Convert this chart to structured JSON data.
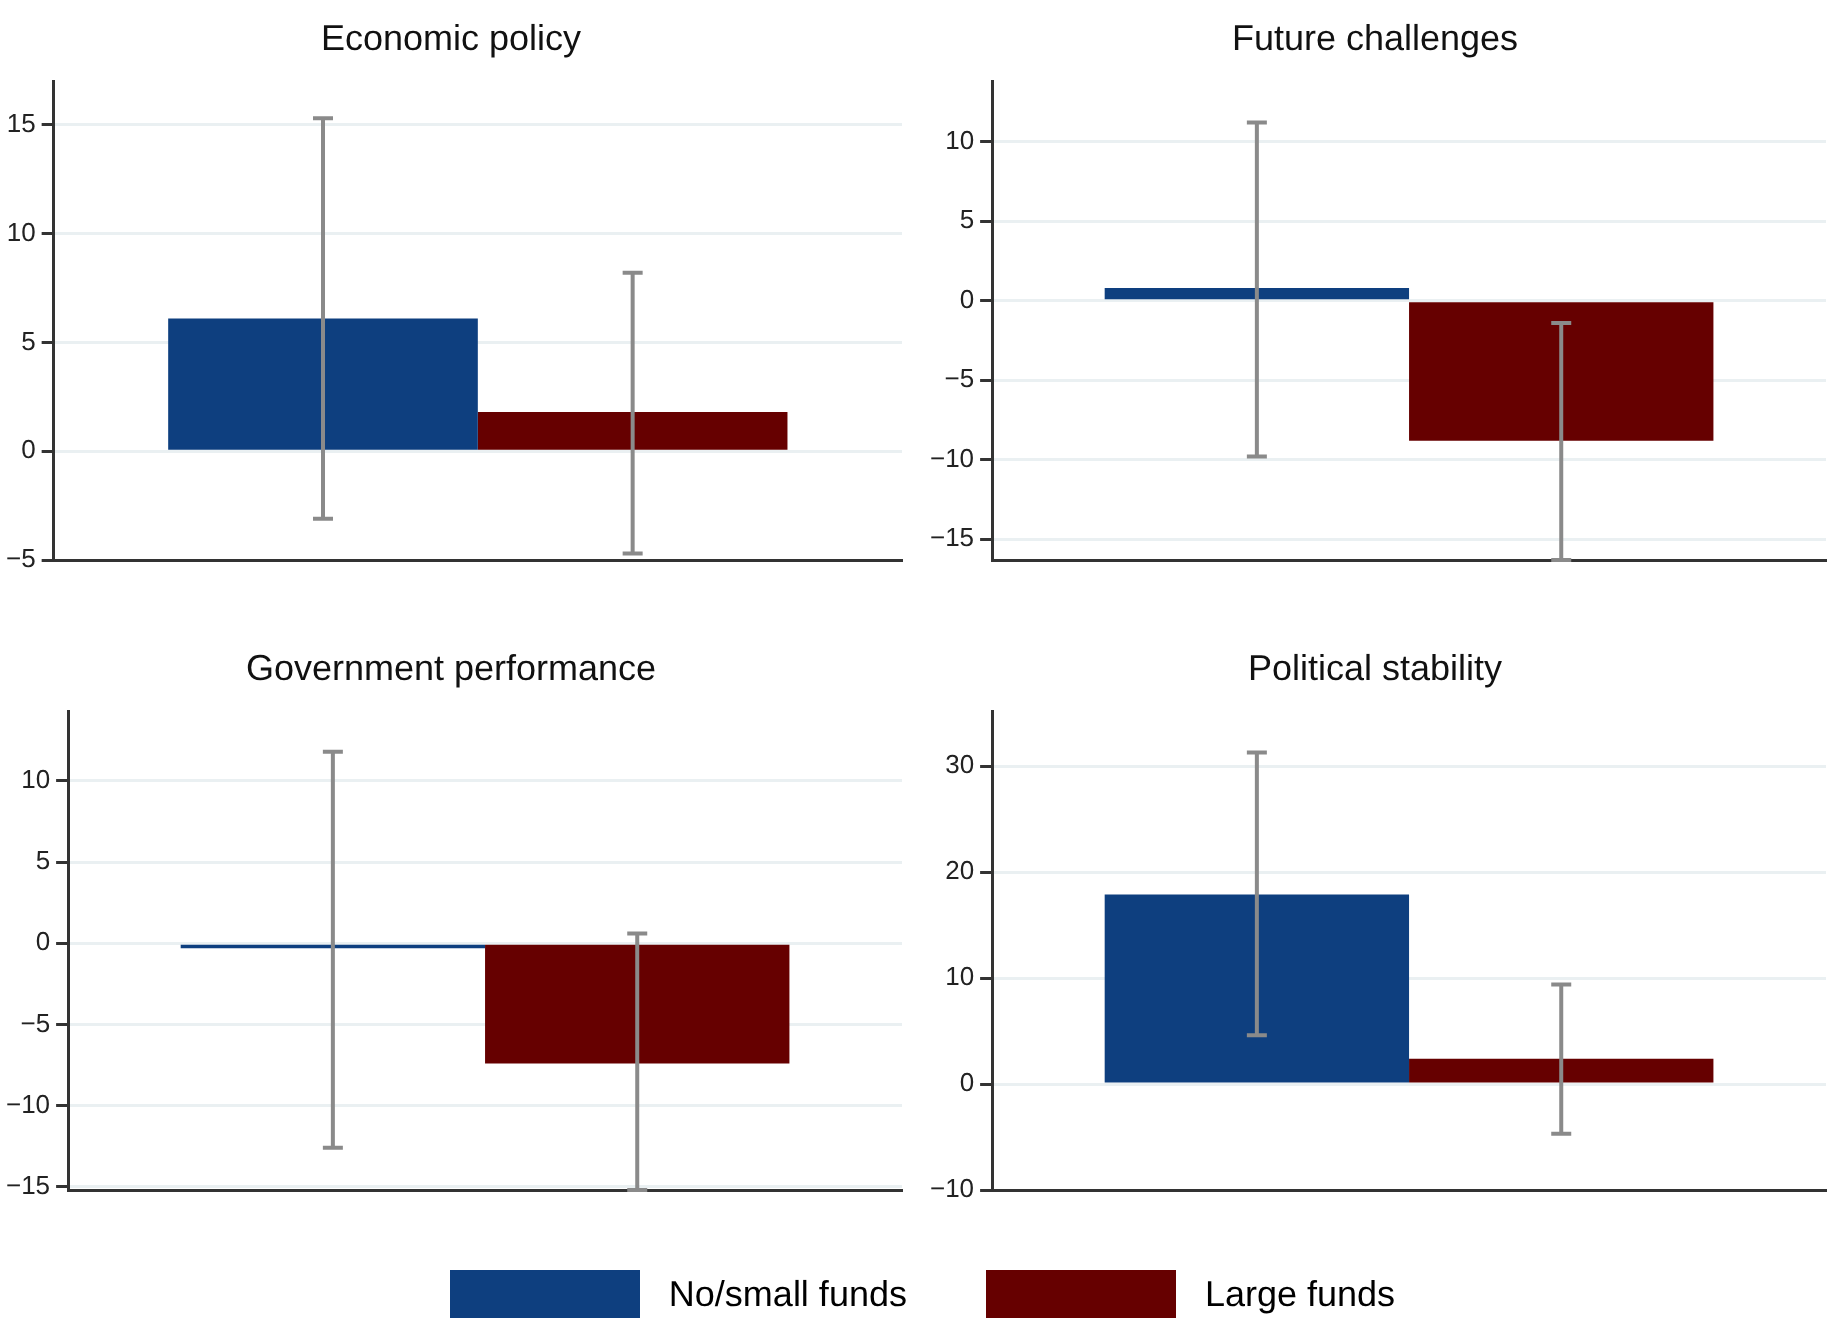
{
  "chart_data": [
    {
      "type": "bar",
      "title": "Economic policy",
      "categories": [
        null
      ],
      "ylim": [
        -5,
        17
      ],
      "yticks": [
        -5,
        0,
        5,
        10,
        15
      ],
      "grid": "y",
      "legend": "bottom",
      "series": [
        {
          "name": "No/small funds",
          "color": "#0e3f7f",
          "values": [
            6.1
          ],
          "errors": [
            [
              -3.1,
              15.3
            ]
          ]
        },
        {
          "name": "Large funds",
          "color": "#660000",
          "values": [
            1.8
          ],
          "errors": [
            [
              -4.7,
              8.2
            ]
          ]
        }
      ]
    },
    {
      "type": "bar",
      "title": "Future challenges",
      "categories": [
        null
      ],
      "ylim": [
        -16.3,
        13.8
      ],
      "yticks": [
        -15,
        -10,
        -5,
        0,
        5,
        10
      ],
      "grid": "y",
      "series": [
        {
          "color": "#0e3f7f",
          "values": [
            0.8
          ],
          "errors": [
            [
              -9.8,
              11.2
            ]
          ]
        },
        {
          "color": "#660000",
          "values": [
            -8.8
          ],
          "errors": [
            [
              -16.3,
              -1.4
            ]
          ]
        }
      ]
    },
    {
      "type": "bar",
      "title": "Government performance",
      "categories": [
        null
      ],
      "ylim": [
        -15.2,
        14.3
      ],
      "yticks": [
        -15,
        -10,
        -5,
        0,
        5,
        10
      ],
      "grid": "y",
      "series": [
        {
          "color": "#0e3f7f",
          "values": [
            -0.3
          ],
          "errors": [
            [
              -12.6,
              11.8
            ]
          ]
        },
        {
          "color": "#660000",
          "values": [
            -7.4
          ],
          "errors": [
            [
              -15.2,
              0.6
            ]
          ]
        }
      ]
    },
    {
      "type": "bar",
      "title": "Political stability",
      "categories": [
        null
      ],
      "ylim": [
        -10,
        35.2
      ],
      "yticks": [
        -10,
        0,
        10,
        20,
        30
      ],
      "grid": "y",
      "series": [
        {
          "color": "#0e3f7f",
          "values": [
            17.9
          ],
          "errors": [
            [
              4.6,
              31.3
            ]
          ]
        },
        {
          "color": "#660000",
          "values": [
            2.4
          ],
          "errors": [
            [
              -4.7,
              9.4
            ]
          ]
        }
      ]
    }
  ]
}
